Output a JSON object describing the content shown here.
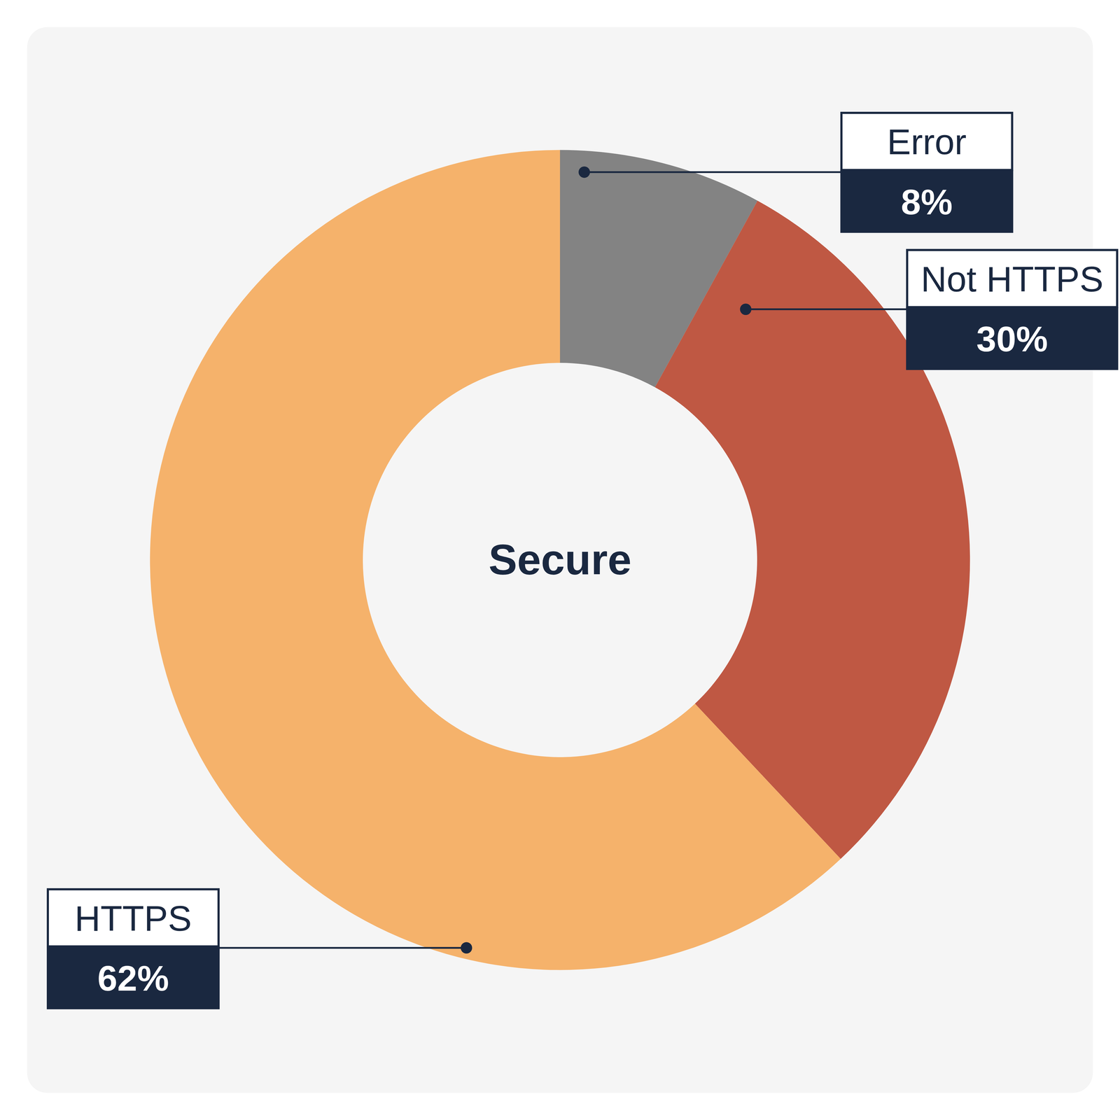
{
  "chart_data": {
    "type": "pie",
    "title": "Secure",
    "categories": [
      "Error",
      "Not HTTPS",
      "HTTPS"
    ],
    "values": [
      8,
      30,
      62
    ],
    "colors": [
      "#838383",
      "#bf5843",
      "#f5b26b"
    ],
    "data_labels": true,
    "value_labels": [
      "8%",
      "30%",
      "62%"
    ]
  }
}
